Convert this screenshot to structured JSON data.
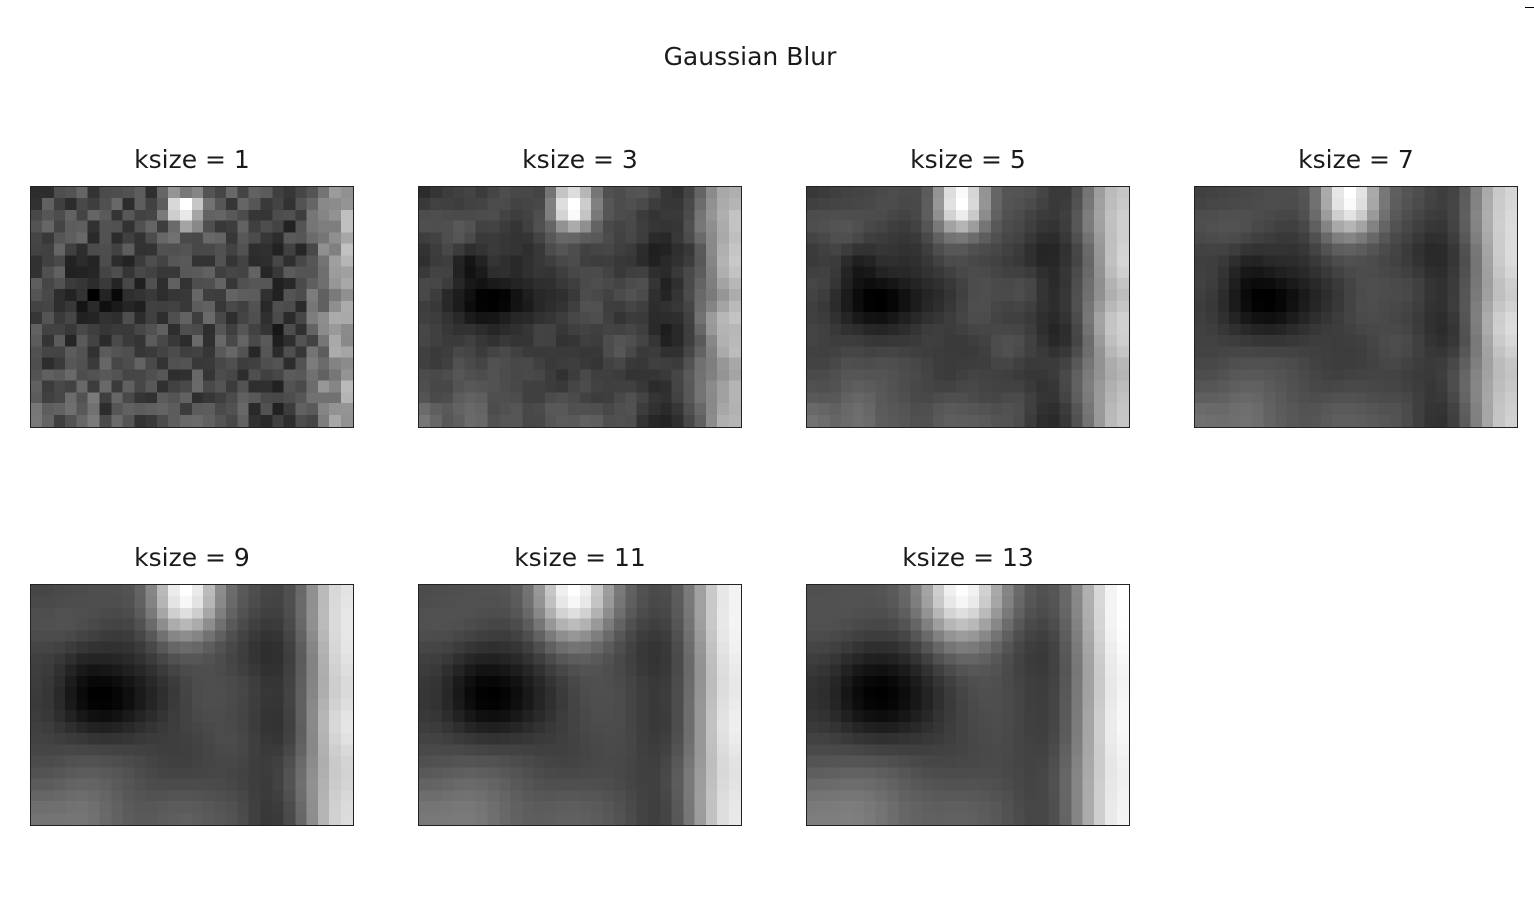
{
  "figure": {
    "title": "Gaussian Blur"
  },
  "chart_data": [
    {
      "type": "heatmap",
      "title": "ksize = 1",
      "colormap": "gray",
      "grid": false,
      "axes": "off"
    },
    {
      "type": "heatmap",
      "title": "ksize = 3",
      "colormap": "gray",
      "grid": false,
      "axes": "off"
    },
    {
      "type": "heatmap",
      "title": "ksize = 5",
      "colormap": "gray",
      "grid": false,
      "axes": "off"
    },
    {
      "type": "heatmap",
      "title": "ksize = 7",
      "colormap": "gray",
      "grid": false,
      "axes": "off"
    },
    {
      "type": "heatmap",
      "title": "ksize = 9",
      "colormap": "gray",
      "grid": false,
      "axes": "off"
    },
    {
      "type": "heatmap",
      "title": "ksize = 11",
      "colormap": "gray",
      "grid": false,
      "axes": "off"
    },
    {
      "type": "heatmap",
      "title": "ksize = 13",
      "colormap": "gray",
      "grid": false,
      "axes": "off"
    }
  ]
}
